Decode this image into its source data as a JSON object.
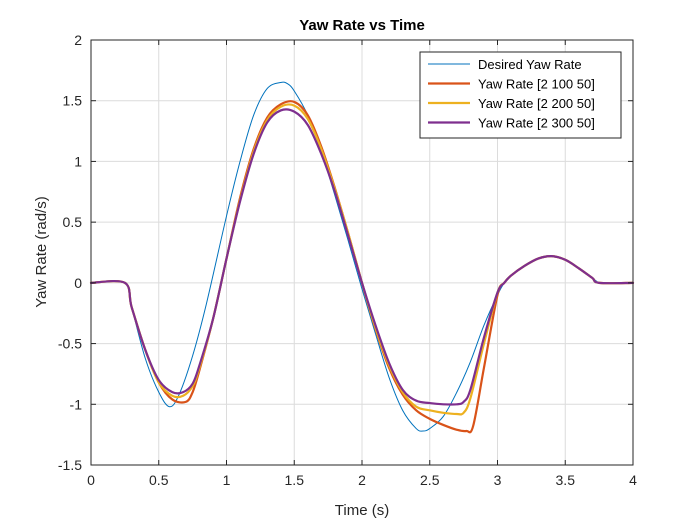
{
  "chart_data": {
    "type": "line",
    "title": "Yaw Rate vs Time",
    "xlabel": "Time (s)",
    "ylabel": "Yaw Rate (rad/s)",
    "xlim": [
      0,
      4
    ],
    "ylim": [
      -1.5,
      2
    ],
    "xticks": [
      0,
      0.5,
      1,
      1.5,
      2,
      2.5,
      3,
      3.5,
      4
    ],
    "xtick_labels": [
      "0",
      "0.5",
      "1",
      "1.5",
      "2",
      "2.5",
      "3",
      "3.5",
      "4"
    ],
    "yticks": [
      -1.5,
      -1,
      -0.5,
      0,
      0.5,
      1,
      1.5,
      2
    ],
    "ytick_labels": [
      "-1.5",
      "-1",
      "-0.5",
      "0",
      "0.5",
      "1",
      "1.5",
      "2"
    ],
    "grid": true,
    "legend_position": "top-right",
    "series": [
      {
        "name": "Desired Yaw Rate",
        "color": "#0072BD",
        "x": [
          0,
          0.25,
          0.3,
          0.4,
          0.5,
          0.58,
          0.65,
          0.75,
          0.85,
          1.0,
          1.1,
          1.2,
          1.3,
          1.4,
          1.45,
          1.5,
          1.6,
          1.7,
          1.8,
          1.9,
          2.0,
          2.1,
          2.2,
          2.3,
          2.4,
          2.45,
          2.5,
          2.6,
          2.7,
          2.8,
          2.9,
          3.0,
          3.05,
          3.1,
          3.2,
          3.3,
          3.4,
          3.5,
          3.6,
          3.7,
          3.75,
          3.8,
          4.0
        ],
        "y": [
          0,
          0,
          -0.2,
          -0.62,
          -0.9,
          -1.02,
          -0.92,
          -0.6,
          -0.18,
          0.55,
          1.0,
          1.38,
          1.6,
          1.65,
          1.64,
          1.58,
          1.38,
          1.08,
          0.72,
          0.34,
          -0.05,
          -0.42,
          -0.78,
          -1.05,
          -1.2,
          -1.22,
          -1.2,
          -1.1,
          -0.9,
          -0.65,
          -0.35,
          -0.1,
          0.0,
          0.06,
          0.14,
          0.2,
          0.22,
          0.19,
          0.12,
          0.04,
          0.0,
          0.0,
          0.0
        ]
      },
      {
        "name": "Yaw Rate [2 100 50]",
        "color": "#D95319",
        "x": [
          0,
          0.25,
          0.3,
          0.4,
          0.5,
          0.6,
          0.7,
          0.75,
          0.8,
          0.9,
          1.0,
          1.1,
          1.2,
          1.3,
          1.4,
          1.5,
          1.6,
          1.7,
          1.8,
          1.9,
          2.0,
          2.1,
          2.2,
          2.3,
          2.4,
          2.5,
          2.6,
          2.7,
          2.77,
          2.82,
          2.9,
          3.0,
          3.05,
          3.1,
          3.2,
          3.3,
          3.4,
          3.5,
          3.6,
          3.7,
          3.75,
          4.0
        ],
        "y": [
          0,
          0,
          -0.2,
          -0.55,
          -0.82,
          -0.96,
          -0.98,
          -0.9,
          -0.72,
          -0.3,
          0.2,
          0.7,
          1.1,
          1.36,
          1.47,
          1.49,
          1.38,
          1.12,
          0.78,
          0.4,
          0.0,
          -0.38,
          -0.7,
          -0.92,
          -1.05,
          -1.12,
          -1.17,
          -1.21,
          -1.22,
          -1.18,
          -0.7,
          -0.1,
          0.0,
          0.06,
          0.14,
          0.2,
          0.22,
          0.19,
          0.12,
          0.04,
          0.0,
          0.0
        ]
      },
      {
        "name": "Yaw Rate [2 200 50]",
        "color": "#EDB120",
        "x": [
          0,
          0.25,
          0.3,
          0.4,
          0.5,
          0.6,
          0.68,
          0.75,
          0.8,
          0.9,
          1.0,
          1.1,
          1.2,
          1.3,
          1.4,
          1.5,
          1.6,
          1.7,
          1.8,
          1.9,
          2.0,
          2.1,
          2.2,
          2.3,
          2.4,
          2.5,
          2.6,
          2.7,
          2.75,
          2.8,
          2.9,
          3.0,
          3.05,
          3.1,
          3.2,
          3.3,
          3.4,
          3.5,
          3.6,
          3.7,
          3.75,
          4.0
        ],
        "y": [
          0,
          0,
          -0.2,
          -0.55,
          -0.82,
          -0.93,
          -0.93,
          -0.85,
          -0.7,
          -0.3,
          0.2,
          0.68,
          1.08,
          1.34,
          1.45,
          1.46,
          1.35,
          1.1,
          0.77,
          0.4,
          0.0,
          -0.37,
          -0.68,
          -0.9,
          -1.02,
          -1.05,
          -1.07,
          -1.08,
          -1.07,
          -0.95,
          -0.5,
          -0.08,
          0.0,
          0.06,
          0.14,
          0.2,
          0.22,
          0.19,
          0.12,
          0.04,
          0.0,
          0.0
        ]
      },
      {
        "name": "Yaw Rate [2 300 50]",
        "color": "#7E2F8E",
        "x": [
          0,
          0.25,
          0.3,
          0.4,
          0.5,
          0.6,
          0.68,
          0.75,
          0.8,
          0.9,
          1.0,
          1.1,
          1.2,
          1.3,
          1.4,
          1.5,
          1.6,
          1.7,
          1.8,
          1.9,
          2.0,
          2.1,
          2.2,
          2.3,
          2.4,
          2.5,
          2.6,
          2.7,
          2.75,
          2.8,
          2.9,
          3.0,
          3.05,
          3.1,
          3.2,
          3.3,
          3.4,
          3.5,
          3.6,
          3.7,
          3.75,
          4.0
        ],
        "y": [
          0,
          0,
          -0.2,
          -0.55,
          -0.8,
          -0.9,
          -0.9,
          -0.83,
          -0.68,
          -0.3,
          0.2,
          0.67,
          1.06,
          1.32,
          1.42,
          1.41,
          1.3,
          1.06,
          0.75,
          0.38,
          0.0,
          -0.35,
          -0.66,
          -0.88,
          -0.97,
          -0.99,
          -1.0,
          -1.0,
          -0.98,
          -0.88,
          -0.45,
          -0.08,
          0.0,
          0.06,
          0.14,
          0.2,
          0.22,
          0.19,
          0.12,
          0.04,
          0.0,
          0.0
        ]
      }
    ]
  }
}
